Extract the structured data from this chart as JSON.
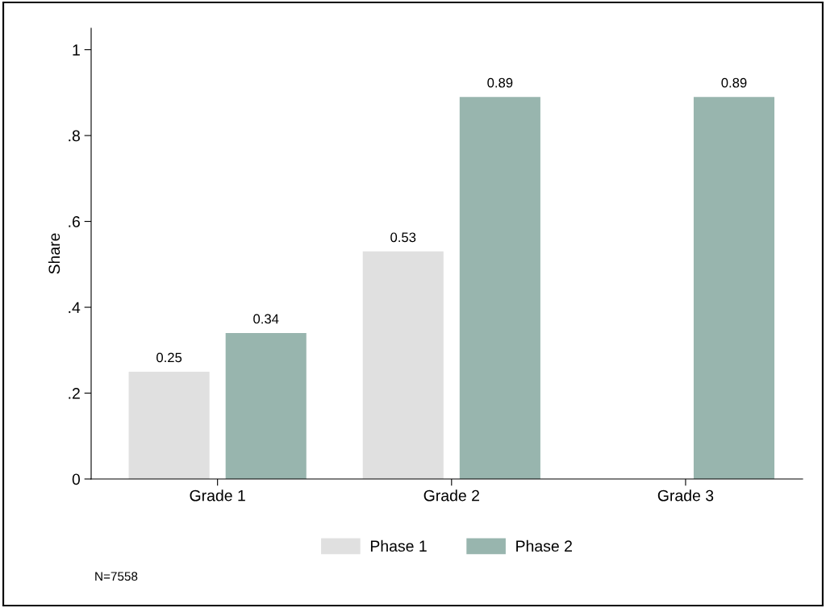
{
  "chart_data": {
    "type": "bar",
    "ylabel": "Share",
    "categories": [
      "Grade 1",
      "Grade 2",
      "Grade 3"
    ],
    "series": [
      {
        "name": "Phase 1",
        "color": "#e0e0e0",
        "values": [
          0.25,
          0.53,
          null
        ]
      },
      {
        "name": "Phase 2",
        "color": "#98b5ae",
        "values": [
          0.34,
          0.89,
          0.89
        ]
      }
    ],
    "ylim": [
      0,
      1.05
    ],
    "yticks": [
      0,
      {
        "value": 0.2,
        "label": ".2"
      },
      {
        "value": 0.4,
        "label": ".4"
      },
      {
        "value": 0.6,
        "label": ".6"
      },
      {
        "value": 0.8,
        "label": ".8"
      },
      1
    ],
    "data_labels": true,
    "grid": false,
    "legend": "bottom",
    "annotations": [
      "N=7558"
    ]
  }
}
